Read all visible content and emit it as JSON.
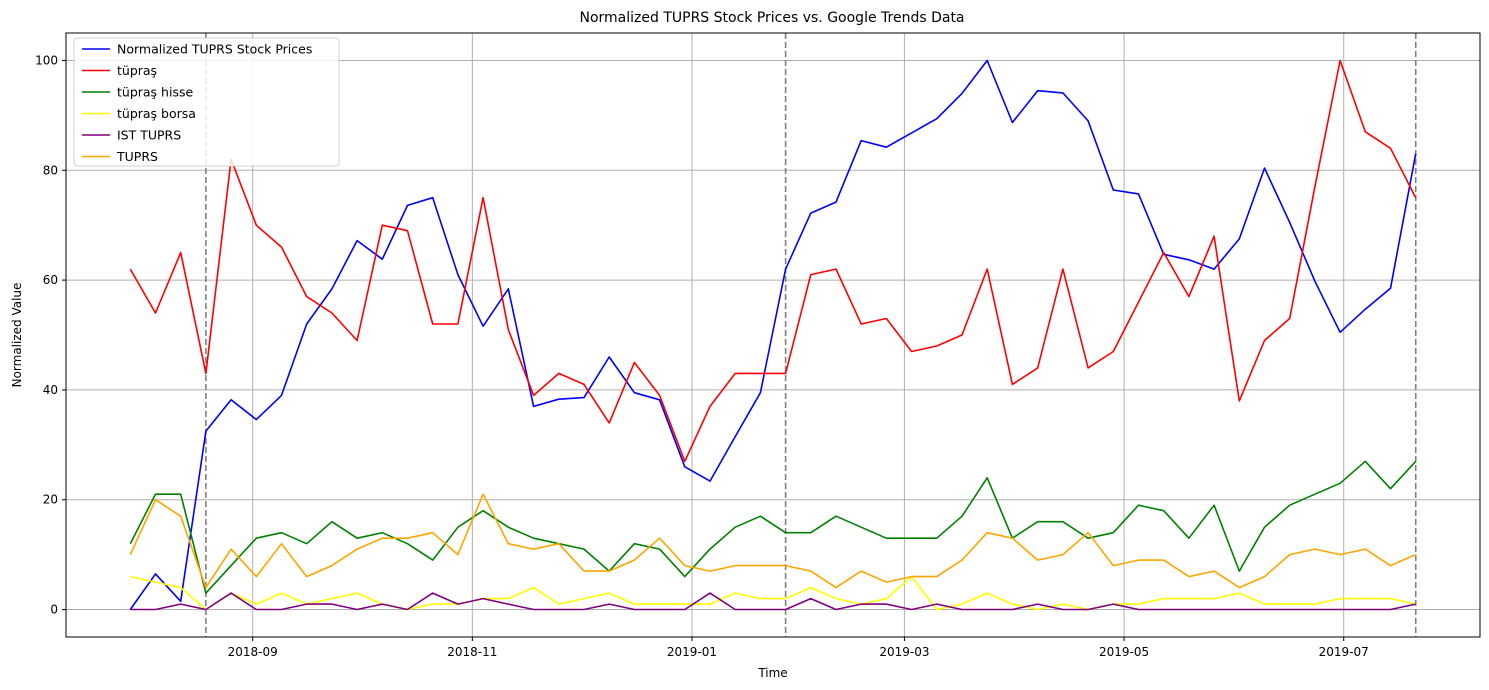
{
  "chart_data": {
    "type": "line",
    "title": "Normalized TUPRS Stock Prices vs. Google Trends Data",
    "xlabel": "Time",
    "ylabel": "Normalized Value",
    "x_tick_labels": [
      "2018-09",
      "2018-11",
      "2019-01",
      "2019-03",
      "2019-05",
      "2019-07"
    ],
    "y_ticks": [
      0,
      20,
      40,
      60,
      80,
      100
    ],
    "ylim": [
      -5,
      105
    ],
    "grid": true,
    "legend_position": "top-left",
    "x": [
      "2018-07-29",
      "2018-08-05",
      "2018-08-12",
      "2018-08-19",
      "2018-08-26",
      "2018-09-02",
      "2018-09-09",
      "2018-09-16",
      "2018-09-23",
      "2018-09-30",
      "2018-10-07",
      "2018-10-14",
      "2018-10-21",
      "2018-10-28",
      "2018-11-04",
      "2018-11-11",
      "2018-11-18",
      "2018-11-25",
      "2018-12-02",
      "2018-12-09",
      "2018-12-16",
      "2018-12-23",
      "2018-12-30",
      "2019-01-06",
      "2019-01-13",
      "2019-01-20",
      "2019-01-27",
      "2019-02-03",
      "2019-02-10",
      "2019-02-17",
      "2019-02-24",
      "2019-03-03",
      "2019-03-10",
      "2019-03-17",
      "2019-03-24",
      "2019-03-31",
      "2019-04-07",
      "2019-04-14",
      "2019-04-21",
      "2019-04-28",
      "2019-05-05",
      "2019-05-12",
      "2019-05-19",
      "2019-05-26",
      "2019-06-02",
      "2019-06-09",
      "2019-06-16",
      "2019-06-23",
      "2019-06-30",
      "2019-07-07",
      "2019-07-14",
      "2019-07-21"
    ],
    "vlines": [
      "2018-08-19",
      "2019-01-27",
      "2019-07-21"
    ],
    "series": [
      {
        "name": "Normalized TUPRS Stock Prices",
        "color": "#0000ff",
        "values": [
          0,
          6.5,
          1.5,
          32.5,
          38.2,
          34.6,
          39,
          52,
          58.4,
          67.2,
          63.8,
          73.6,
          75,
          61,
          51.6,
          58.4,
          37,
          38.3,
          38.6,
          46,
          39.5,
          38.2,
          26,
          23.4,
          31.5,
          39.5,
          62,
          72.2,
          74.2,
          85.4,
          84.2,
          86.8,
          89.4,
          94,
          100,
          88.7,
          94.5,
          94.1,
          89,
          76.4,
          75.7,
          64.7,
          63.7,
          62,
          67.5,
          80.4,
          70.5,
          59.8,
          50.5,
          54.7,
          58.5,
          83
        ]
      },
      {
        "name": "tüpraş",
        "color": "#ff0000",
        "values": [
          62,
          54,
          65,
          43,
          82,
          70,
          66,
          57,
          54,
          49,
          70,
          69,
          52,
          52,
          75,
          51,
          39,
          43,
          41,
          34,
          45,
          39,
          27,
          37,
          43,
          43,
          43,
          61,
          62,
          52,
          53,
          47,
          48,
          50,
          62,
          41,
          44,
          62,
          44,
          47,
          56,
          65,
          57,
          68,
          38,
          49,
          53,
          77,
          100,
          87,
          84,
          75
        ]
      },
      {
        "name": "tüpraş hisse",
        "color": "#008000",
        "values": [
          12,
          21,
          21,
          3,
          8,
          13,
          14,
          12,
          16,
          13,
          14,
          12,
          9,
          15,
          18,
          15,
          13,
          12,
          11,
          7,
          12,
          11,
          6,
          11,
          15,
          17,
          14,
          14,
          17,
          15,
          13,
          13,
          13,
          17,
          24,
          13,
          16,
          16,
          13,
          14,
          19,
          18,
          13,
          19,
          7,
          15,
          19,
          21,
          23,
          27,
          22,
          27
        ]
      },
      {
        "name": "tüpraş borsa",
        "color": "#ffff00",
        "values": [
          6,
          5,
          4,
          0,
          3,
          1,
          3,
          1,
          2,
          3,
          1,
          0,
          1,
          1,
          2,
          2,
          4,
          1,
          2,
          3,
          1,
          1,
          1,
          1,
          3,
          2,
          2,
          4,
          2,
          1,
          2,
          6,
          0,
          1,
          3,
          1,
          0,
          1,
          0,
          1,
          1,
          2,
          2,
          2,
          3,
          1,
          1,
          1,
          2,
          2,
          2,
          1
        ]
      },
      {
        "name": "IST TUPRS",
        "color": "#800080",
        "values": [
          0,
          0,
          1,
          0,
          3,
          0,
          0,
          1,
          1,
          0,
          1,
          0,
          3,
          1,
          2,
          1,
          0,
          0,
          0,
          1,
          0,
          0,
          0,
          3,
          0,
          0,
          0,
          2,
          0,
          1,
          1,
          0,
          1,
          0,
          0,
          0,
          1,
          0,
          0,
          1,
          0,
          0,
          0,
          0,
          0,
          0,
          0,
          0,
          0,
          0,
          0,
          1
        ]
      },
      {
        "name": "TUPRS",
        "color": "#ffa500",
        "values": [
          10,
          20,
          17,
          4,
          11,
          6,
          12,
          6,
          8,
          11,
          13,
          13,
          14,
          10,
          21,
          12,
          11,
          12,
          7,
          7,
          9,
          13,
          8,
          7,
          8,
          8,
          8,
          7,
          4,
          7,
          5,
          6,
          6,
          9,
          14,
          13,
          9,
          10,
          14,
          8,
          9,
          9,
          6,
          7,
          4,
          6,
          10,
          11,
          10,
          11,
          8,
          10
        ]
      }
    ]
  }
}
